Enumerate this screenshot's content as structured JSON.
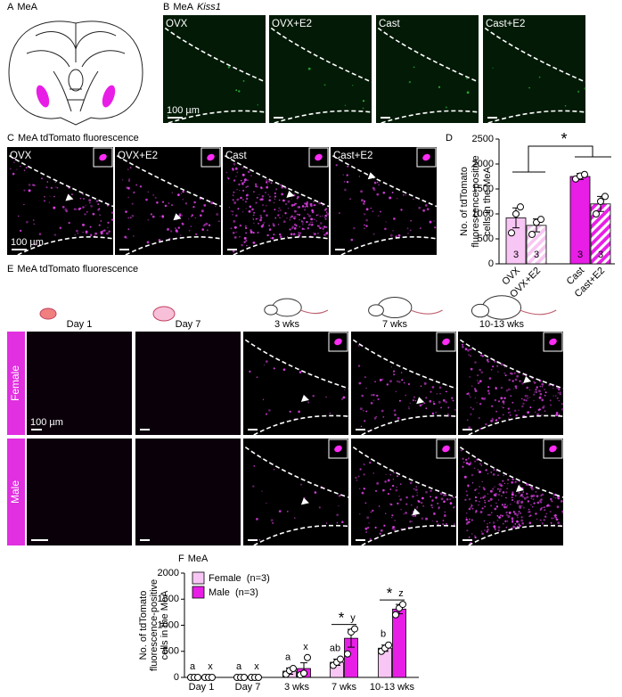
{
  "panels": {
    "A": {
      "letter": "A",
      "title": "MeA"
    },
    "B": {
      "letter": "B",
      "title": "MeA",
      "gene": "Kiss1",
      "images": [
        "OVX",
        "OVX+E2",
        "Cast",
        "Cast+E2"
      ],
      "scale_bar": "100 µm"
    },
    "C": {
      "letter": "C",
      "title": "MeA tdTomato fluorescence",
      "images": [
        "OVX",
        "OVX+E2",
        "Cast",
        "Cast+E2"
      ],
      "scale_bar": "100 µm"
    },
    "D": {
      "letter": "D"
    },
    "E": {
      "letter": "E",
      "title": "MeA tdTomato fluorescence",
      "ages": [
        "Day 1",
        "Day 7",
        "3 wks",
        "7 wks",
        "10-13 wks"
      ],
      "rows": [
        "Female",
        "Male"
      ],
      "scale_bar": "100 µm"
    },
    "F": {
      "letter": "F",
      "title": "MeA"
    }
  },
  "chart_data": [
    {
      "type": "bar",
      "y_label": [
        "No. of tdTomato",
        "fluorescence-positive",
        "cells in the MeA"
      ],
      "categories": [
        "OVX",
        "OVX+E2",
        "Cast",
        "Cast+E2"
      ],
      "values": [
        920,
        770,
        1750,
        1200
      ],
      "errors": [
        200,
        130,
        60,
        150
      ],
      "points": [
        [
          620,
          1000,
          1140
        ],
        [
          590,
          830,
          890
        ],
        [
          1700,
          1760,
          1790
        ],
        [
          1000,
          1250,
          1350
        ]
      ],
      "n": [
        3,
        3,
        3,
        3
      ],
      "colors": [
        "#f8c6f4",
        "#f8c6f4",
        "#e81ee6",
        "#e81ee6"
      ],
      "hatched": [
        false,
        true,
        false,
        true
      ],
      "ylim": [
        0,
        2500
      ],
      "yticks": [
        0,
        500,
        1000,
        1500,
        2000,
        2500
      ],
      "significance": "*"
    },
    {
      "type": "bar",
      "y_label": [
        "No. of tdTomato",
        "fluorescence-positive",
        "cells in the MeA"
      ],
      "categories": [
        "Day 1",
        "Day 7",
        "3 wks",
        "7 wks",
        "10-13 wks"
      ],
      "series": [
        {
          "name": "Female  (n=3)",
          "color": "#f8c6f4",
          "values": [
            0,
            0,
            120,
            290,
            560
          ],
          "errors": [
            0,
            0,
            60,
            60,
            60
          ],
          "points": [
            [
              0,
              0,
              0
            ],
            [
              0,
              0,
              0
            ],
            [
              60,
              130,
              170
            ],
            [
              230,
              290,
              350
            ],
            [
              500,
              560,
              620
            ]
          ],
          "letters": [
            "a",
            "a",
            "a",
            "ab",
            "b"
          ]
        },
        {
          "name": "Male  (n=3)",
          "color": "#e81ee6",
          "values": [
            0,
            0,
            170,
            750,
            1310
          ],
          "errors": [
            0,
            0,
            110,
            170,
            90
          ],
          "points": [
            [
              0,
              0,
              0
            ],
            [
              0,
              0,
              0
            ],
            [
              50,
              80,
              380
            ],
            [
              450,
              870,
              930
            ],
            [
              1200,
              1330,
              1400
            ]
          ],
          "letters": [
            "x",
            "x",
            "x",
            "y",
            "z"
          ]
        }
      ],
      "ylim": [
        0,
        2000
      ],
      "yticks": [
        0,
        500,
        1000,
        1500,
        2000
      ],
      "significance": [
        null,
        null,
        null,
        "*",
        "*"
      ],
      "legend": "upper-left"
    }
  ]
}
